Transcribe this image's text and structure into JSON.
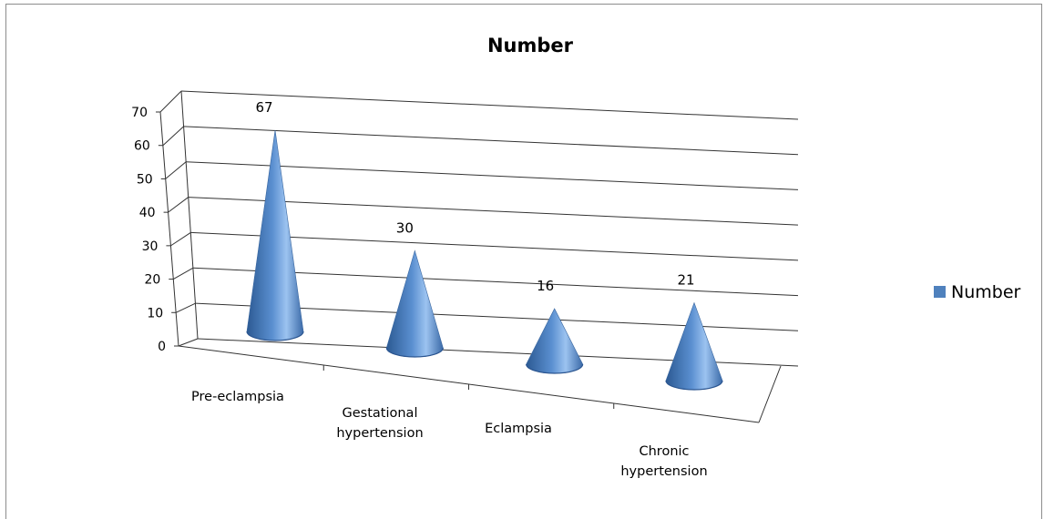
{
  "chart_data": {
    "type": "bar",
    "title": "Number",
    "categories": [
      "Pre-eclampsia",
      "Gestational hypertension",
      "Eclampsia",
      "Chronic hypertension"
    ],
    "category_lines": [
      [
        "Pre-eclampsia"
      ],
      [
        "Gestational",
        "hypertension"
      ],
      [
        "Eclampsia"
      ],
      [
        "Chronic",
        "hypertension"
      ]
    ],
    "series": [
      {
        "name": "Number",
        "values": [
          67,
          30,
          16,
          21
        ],
        "color": "#4f81bd"
      }
    ],
    "data_labels": [
      "67",
      "30",
      "16",
      "21"
    ],
    "yticks": [
      "0",
      "10",
      "20",
      "30",
      "40",
      "50",
      "60",
      "70"
    ],
    "ylim": [
      0,
      70
    ],
    "grid": true,
    "legend": "right",
    "bar_shape": "cone-3d"
  }
}
